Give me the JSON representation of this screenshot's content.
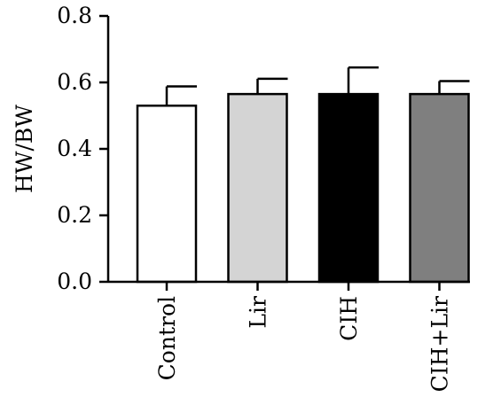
{
  "chart_data": {
    "type": "bar",
    "categories": [
      "Control",
      "Lir",
      "CIH",
      "CIH+Lir"
    ],
    "values": [
      0.53,
      0.565,
      0.565,
      0.565
    ],
    "errors": [
      0.058,
      0.046,
      0.08,
      0.039
    ],
    "colors": [
      "#ffffff",
      "#d4d4d4",
      "#000000",
      "#7f7f7f"
    ],
    "ylabel": "HW/BW",
    "xlabel": "",
    "title": "",
    "ylim": [
      0,
      0.8
    ],
    "yticks": [
      "0.0",
      "0.2",
      "0.4",
      "0.6",
      "0.8"
    ],
    "grid": false,
    "legend": "none"
  }
}
